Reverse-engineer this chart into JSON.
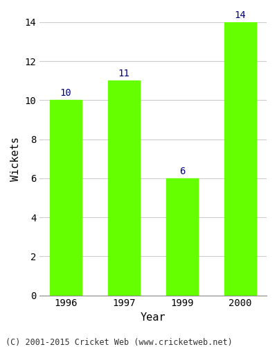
{
  "categories": [
    "1996",
    "1997",
    "1999",
    "2000"
  ],
  "values": [
    10,
    11,
    6,
    14
  ],
  "bar_color": "#66ff00",
  "bar_edge_color": "#66ff00",
  "xlabel": "Year",
  "ylabel": "Wickets",
  "ylim": [
    0,
    14
  ],
  "yticks": [
    0,
    2,
    4,
    6,
    8,
    10,
    12,
    14
  ],
  "label_color": "#000080",
  "label_fontsize": 10,
  "axis_label_fontsize": 11,
  "tick_fontsize": 10,
  "background_color": "#ffffff",
  "plot_bg_color": "#ffffff",
  "grid_color": "#cccccc",
  "footer_text": "(C) 2001-2015 Cricket Web (www.cricketweb.net)",
  "footer_fontsize": 8.5
}
